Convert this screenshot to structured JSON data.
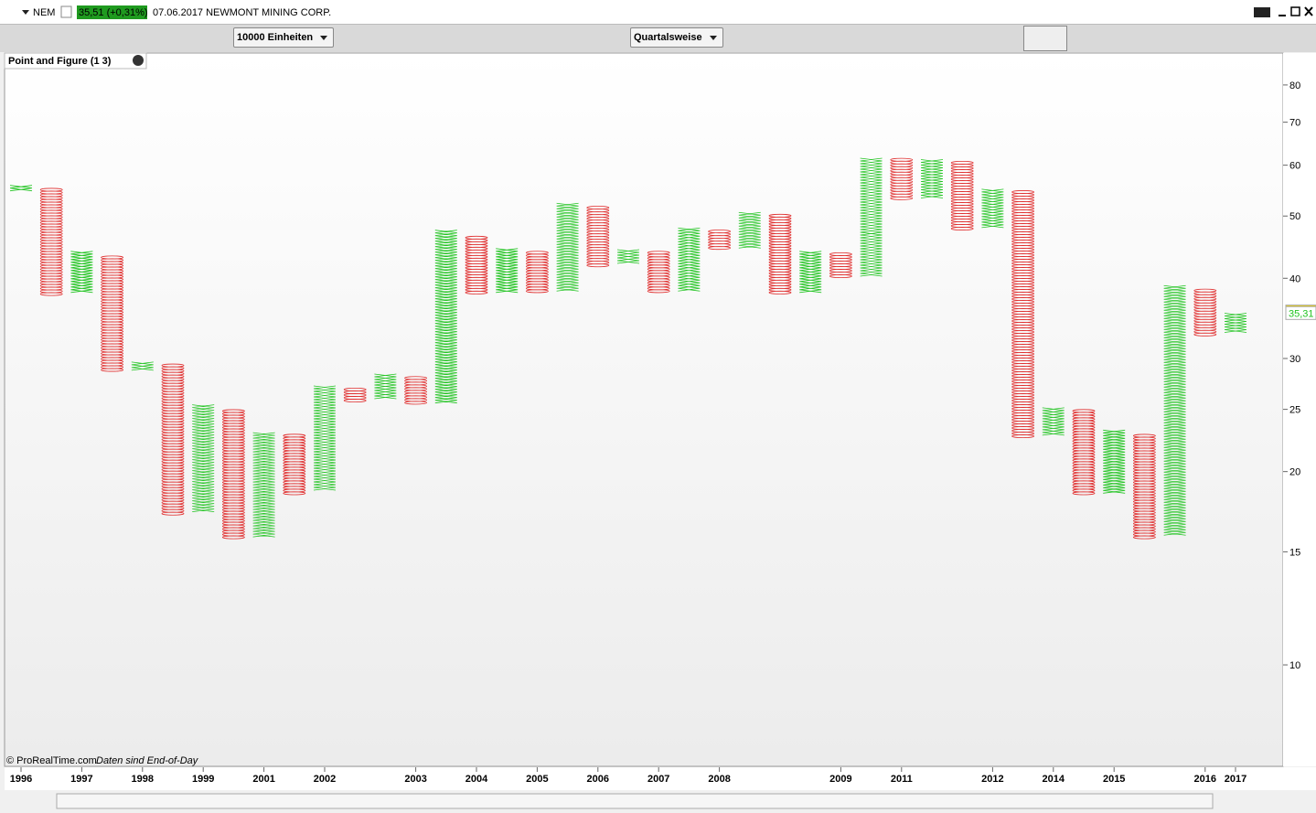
{
  "header": {
    "symbol": "NEM",
    "quote": "35,51 (+0,31%)",
    "description": "07.06.2017 NEWMONT MINING CORP."
  },
  "toolbar": {
    "units": "10000 Einheiten",
    "period": "Quartalsweise"
  },
  "footer": {
    "copyright": "© ProRealTime.com",
    "note": "Daten sind End-of-Day"
  },
  "chart_data": {
    "type": "point_and_figure",
    "title": "Point and Figure (1 3)",
    "categories": [
      "1996",
      null,
      "1997",
      null,
      "1998",
      null,
      "1999",
      null,
      "2001",
      null,
      "2002",
      null,
      null,
      "2003",
      null,
      "2004",
      null,
      "2005",
      null,
      "2006",
      null,
      "2007",
      null,
      "2008",
      null,
      null,
      null,
      "2009",
      null,
      "2011",
      null,
      null,
      "2012",
      null,
      "2014",
      null,
      "2015",
      null,
      null,
      "2016",
      "2017"
    ],
    "kinds": [
      "X",
      "O",
      "X",
      "O",
      "X",
      "O",
      "X",
      "O",
      "X",
      "O",
      "X",
      "O",
      "X",
      "O",
      "X",
      "O",
      "X",
      "O",
      "X",
      "O",
      "X",
      "O",
      "X",
      "O",
      "X",
      "O",
      "X",
      "O",
      "X",
      "O",
      "X",
      "O",
      "X",
      "O",
      "X",
      "O",
      "X",
      "O",
      "X",
      "O",
      "X"
    ],
    "high": [
      55.8,
      55.0,
      43.9,
      43.5,
      29.5,
      29.3,
      25.4,
      25.0,
      23.0,
      22.8,
      27.2,
      26.9,
      28.3,
      28.0,
      47.3,
      46.7,
      44.3,
      43.9,
      52.4,
      51.9,
      44.4,
      44.0,
      48.1,
      47.6,
      50.9,
      50.4,
      44.0,
      43.6,
      61.8,
      61.2,
      61.5,
      61.0,
      55.3,
      54.8,
      25.2,
      24.9,
      23.1,
      22.8,
      38.8,
      38.4,
      35.4
    ],
    "low": [
      55.0,
      37.8,
      38.2,
      28.8,
      28.9,
      17.2,
      17.4,
      15.8,
      15.9,
      18.5,
      18.8,
      25.8,
      26.1,
      25.6,
      25.7,
      38.0,
      38.2,
      38.2,
      38.4,
      41.9,
      42.4,
      38.2,
      38.4,
      44.6,
      44.8,
      38.0,
      38.2,
      40.3,
      40.5,
      53.3,
      53.6,
      47.8,
      48.2,
      22.7,
      22.9,
      18.5,
      18.6,
      15.8,
      16.0,
      32.7,
      33.1
    ],
    "x_color": "#22c422",
    "o_color": "#e03030",
    "ylim": [
      6.95,
      89.7
    ],
    "log_scale": true,
    "yticks": [
      10,
      15,
      20,
      25,
      30,
      40,
      50,
      60,
      70,
      80
    ],
    "price_labels": [
      {
        "value": 35.51,
        "label": "35,51",
        "color": "#f5d800"
      },
      {
        "value": 35.31,
        "label": "35,31",
        "color": "#ffffff"
      }
    ]
  }
}
